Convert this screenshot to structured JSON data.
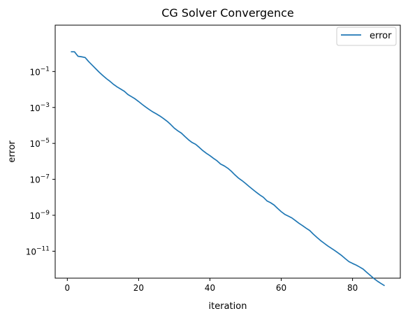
{
  "colors": {
    "series": "#1f77b4",
    "axes": "#000000",
    "legend_border": "#cccccc"
  },
  "chart_data": {
    "type": "line",
    "title": "CG Solver Convergence",
    "xlabel": "iteration",
    "ylabel": "error",
    "xlim": [
      -3.4,
      93.4
    ],
    "ylim_exponent": [
      -12.5,
      1.58
    ],
    "y_scale": "log",
    "grid": false,
    "legend_position": "top-right",
    "x_ticks": [
      {
        "value": 0,
        "label": "0"
      },
      {
        "value": 20,
        "label": "20"
      },
      {
        "value": 40,
        "label": "40"
      },
      {
        "value": 60,
        "label": "60"
      },
      {
        "value": 80,
        "label": "80"
      }
    ],
    "y_ticks": [
      {
        "exp": -1,
        "label": "10",
        "sup": "−1"
      },
      {
        "exp": -3,
        "label": "10",
        "sup": "−3"
      },
      {
        "exp": -5,
        "label": "10",
        "sup": "−5"
      },
      {
        "exp": -7,
        "label": "10",
        "sup": "−7"
      },
      {
        "exp": -9,
        "label": "10",
        "sup": "−9"
      },
      {
        "exp": -11,
        "label": "10",
        "sup": "−11"
      }
    ],
    "series": [
      {
        "name": "error",
        "x": [
          1,
          2,
          3,
          4,
          5,
          6,
          7,
          8,
          9,
          10,
          11,
          12,
          13,
          14,
          15,
          16,
          17,
          18,
          19,
          20,
          21,
          22,
          23,
          24,
          25,
          26,
          27,
          28,
          29,
          30,
          31,
          32,
          33,
          34,
          35,
          36,
          37,
          38,
          39,
          40,
          41,
          42,
          43,
          44,
          45,
          46,
          47,
          48,
          49,
          50,
          51,
          52,
          53,
          54,
          55,
          56,
          57,
          58,
          59,
          60,
          61,
          62,
          63,
          64,
          65,
          66,
          67,
          68,
          69,
          70,
          71,
          72,
          73,
          74,
          75,
          76,
          77,
          78,
          79,
          80,
          81,
          82,
          83,
          84,
          85,
          86,
          87,
          88,
          89
        ],
        "log10_y": [
          0.1,
          0.1,
          -0.15,
          -0.18,
          -0.22,
          -0.45,
          -0.65,
          -0.85,
          -1.05,
          -1.23,
          -1.4,
          -1.55,
          -1.72,
          -1.86,
          -1.98,
          -2.1,
          -2.28,
          -2.4,
          -2.52,
          -2.67,
          -2.83,
          -2.98,
          -3.12,
          -3.25,
          -3.36,
          -3.48,
          -3.62,
          -3.77,
          -3.95,
          -4.15,
          -4.3,
          -4.43,
          -4.62,
          -4.8,
          -4.95,
          -5.05,
          -5.22,
          -5.4,
          -5.55,
          -5.68,
          -5.83,
          -5.97,
          -6.15,
          -6.25,
          -6.38,
          -6.55,
          -6.75,
          -6.93,
          -7.07,
          -7.23,
          -7.4,
          -7.56,
          -7.72,
          -7.87,
          -8.0,
          -8.2,
          -8.3,
          -8.43,
          -8.62,
          -8.8,
          -8.95,
          -9.05,
          -9.15,
          -9.3,
          -9.45,
          -9.58,
          -9.72,
          -9.85,
          -10.05,
          -10.23,
          -10.4,
          -10.55,
          -10.7,
          -10.83,
          -10.96,
          -11.1,
          -11.25,
          -11.42,
          -11.58,
          -11.68,
          -11.77,
          -11.88,
          -12.0,
          -12.18,
          -12.35,
          -12.52,
          -12.67,
          -12.8,
          -12.92
        ]
      }
    ]
  }
}
